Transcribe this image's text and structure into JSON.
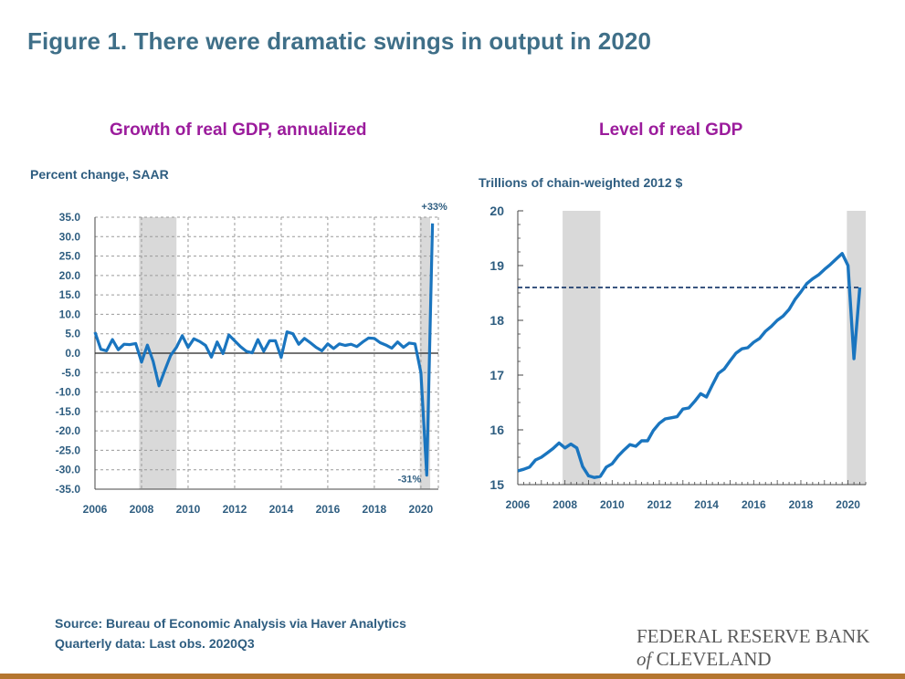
{
  "figure": {
    "title": "Figure 1. There were dramatic swings in output in 2020",
    "source_line1": "Source: Bureau of Economic Analysis via Haver Analytics",
    "source_line2": "Quarterly data: Last obs. 2020Q3"
  },
  "logo": {
    "line1": "FEDERAL RESERVE BANK",
    "of": "of",
    "line2": " CLEVELAND"
  },
  "colors": {
    "series": "#1a75bf",
    "recession": "#d9d9d9",
    "axis_text": "#2e5d80",
    "panel_title": "#9b1c9c",
    "figure_title": "#3f6f88"
  },
  "chart_data": [
    {
      "type": "line",
      "title": "Growth of real GDP, annualized",
      "ylabel": "Percent change, SAAR",
      "xlabel": "",
      "xlim": [
        2006,
        2020.75
      ],
      "ylim": [
        -35,
        35
      ],
      "yticks": [
        "35.0",
        "30.0",
        "25.0",
        "20.0",
        "15.0",
        "10.0",
        "5.0",
        "0.0",
        "-5.0",
        "-10.0",
        "-15.0",
        "-20.0",
        "-25.0",
        "-30.0",
        "-35.0"
      ],
      "xticks": [
        "2006",
        "2008",
        "2010",
        "2012",
        "2014",
        "2016",
        "2018",
        "2020"
      ],
      "grid": true,
      "recessions": [
        [
          2007.9,
          2009.5
        ],
        [
          2019.95,
          2020.4
        ]
      ],
      "annotations": [
        "+33%",
        "-31%"
      ],
      "series": [
        {
          "x": [
            2006.0,
            2006.25,
            2006.5,
            2006.75,
            2007.0,
            2007.25,
            2007.5,
            2007.75,
            2008.0,
            2008.25,
            2008.5,
            2008.75,
            2009.0,
            2009.25,
            2009.5,
            2009.75,
            2010.0,
            2010.25,
            2010.5,
            2010.75,
            2011.0,
            2011.25,
            2011.5,
            2011.75,
            2012.0,
            2012.25,
            2012.5,
            2012.75,
            2013.0,
            2013.25,
            2013.5,
            2013.75,
            2014.0,
            2014.25,
            2014.5,
            2014.75,
            2015.0,
            2015.25,
            2015.5,
            2015.75,
            2016.0,
            2016.25,
            2016.5,
            2016.75,
            2017.0,
            2017.25,
            2017.5,
            2017.75,
            2018.0,
            2018.25,
            2018.5,
            2018.75,
            2019.0,
            2019.25,
            2019.5,
            2019.75,
            2020.0,
            2020.25,
            2020.5
          ],
          "y": [
            5.4,
            1.0,
            0.6,
            3.5,
            0.9,
            2.3,
            2.2,
            2.5,
            -2.3,
            2.1,
            -2.1,
            -8.4,
            -4.4,
            -0.6,
            1.5,
            4.5,
            1.5,
            3.7,
            3.0,
            2.0,
            -1.0,
            2.9,
            -0.1,
            4.7,
            3.2,
            1.7,
            0.5,
            0.1,
            3.5,
            0.5,
            3.2,
            3.2,
            -1.1,
            5.5,
            5.0,
            2.3,
            3.8,
            2.7,
            1.5,
            0.6,
            2.4,
            1.2,
            2.4,
            2.0,
            2.3,
            1.7,
            2.9,
            3.9,
            3.8,
            2.7,
            2.1,
            1.3,
            2.9,
            1.5,
            2.6,
            2.4,
            -5.0,
            -31.4,
            33.4
          ]
        }
      ]
    },
    {
      "type": "line",
      "title": "Level of real GDP",
      "ylabel": "Trillions of chain-weighted 2012 $",
      "xlabel": "",
      "xlim": [
        2006,
        2020.75
      ],
      "ylim": [
        15,
        20
      ],
      "yticks": [
        "20",
        "19",
        "18",
        "17",
        "16",
        "15"
      ],
      "xticks": [
        "2006",
        "2008",
        "2010",
        "2012",
        "2014",
        "2016",
        "2018",
        "2020"
      ],
      "grid": false,
      "recessions": [
        [
          2007.9,
          2009.5
        ],
        [
          2019.95,
          2020.9
        ]
      ],
      "reference_line": 18.6,
      "series": [
        {
          "x": [
            2006.0,
            2006.25,
            2006.5,
            2006.75,
            2007.0,
            2007.25,
            2007.5,
            2007.75,
            2008.0,
            2008.25,
            2008.5,
            2008.75,
            2009.0,
            2009.25,
            2009.5,
            2009.75,
            2010.0,
            2010.25,
            2010.5,
            2010.75,
            2011.0,
            2011.25,
            2011.5,
            2011.75,
            2012.0,
            2012.25,
            2012.5,
            2012.75,
            2013.0,
            2013.25,
            2013.5,
            2013.75,
            2014.0,
            2014.25,
            2014.5,
            2014.75,
            2015.0,
            2015.25,
            2015.5,
            2015.75,
            2016.0,
            2016.25,
            2016.5,
            2016.75,
            2017.0,
            2017.25,
            2017.5,
            2017.75,
            2018.0,
            2018.25,
            2018.5,
            2018.75,
            2019.0,
            2019.25,
            2019.5,
            2019.75,
            2020.0,
            2020.25,
            2020.5
          ],
          "y": [
            15.25,
            15.28,
            15.32,
            15.45,
            15.5,
            15.58,
            15.66,
            15.76,
            15.67,
            15.74,
            15.67,
            15.33,
            15.16,
            15.13,
            15.15,
            15.32,
            15.38,
            15.52,
            15.63,
            15.73,
            15.7,
            15.8,
            15.8,
            15.99,
            16.12,
            16.2,
            16.22,
            16.24,
            16.38,
            16.4,
            16.52,
            16.66,
            16.6,
            16.82,
            17.03,
            17.11,
            17.26,
            17.4,
            17.48,
            17.5,
            17.6,
            17.67,
            17.8,
            17.89,
            18.0,
            18.08,
            18.2,
            18.38,
            18.52,
            18.67,
            18.76,
            18.83,
            18.93,
            19.02,
            19.12,
            19.22,
            19.0,
            17.3,
            18.6
          ]
        }
      ]
    }
  ]
}
